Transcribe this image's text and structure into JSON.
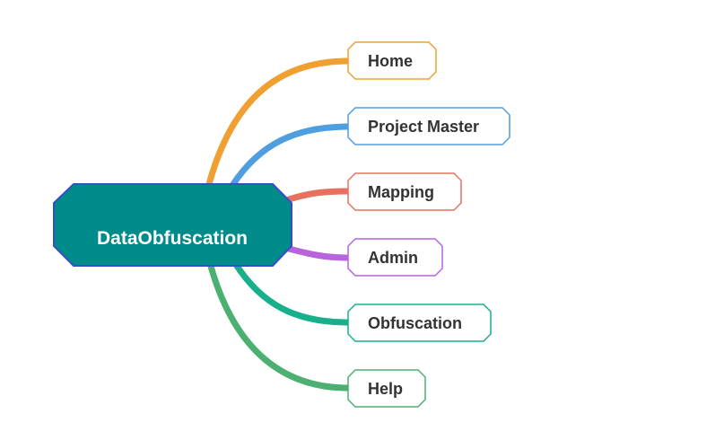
{
  "root": {
    "label": "DataObfuscation",
    "fill": "#008b8b",
    "border": "#3b4bc8"
  },
  "branches": [
    {
      "label": "Home",
      "color": "#f0a030"
    },
    {
      "label": "Project Master",
      "color": "#4f9fe0"
    },
    {
      "label": "Mapping",
      "color": "#e8705e"
    },
    {
      "label": "Admin",
      "color": "#b864dc"
    },
    {
      "label": "Obfuscation",
      "color": "#17b08a"
    },
    {
      "label": "Help",
      "color": "#4bb072"
    }
  ]
}
